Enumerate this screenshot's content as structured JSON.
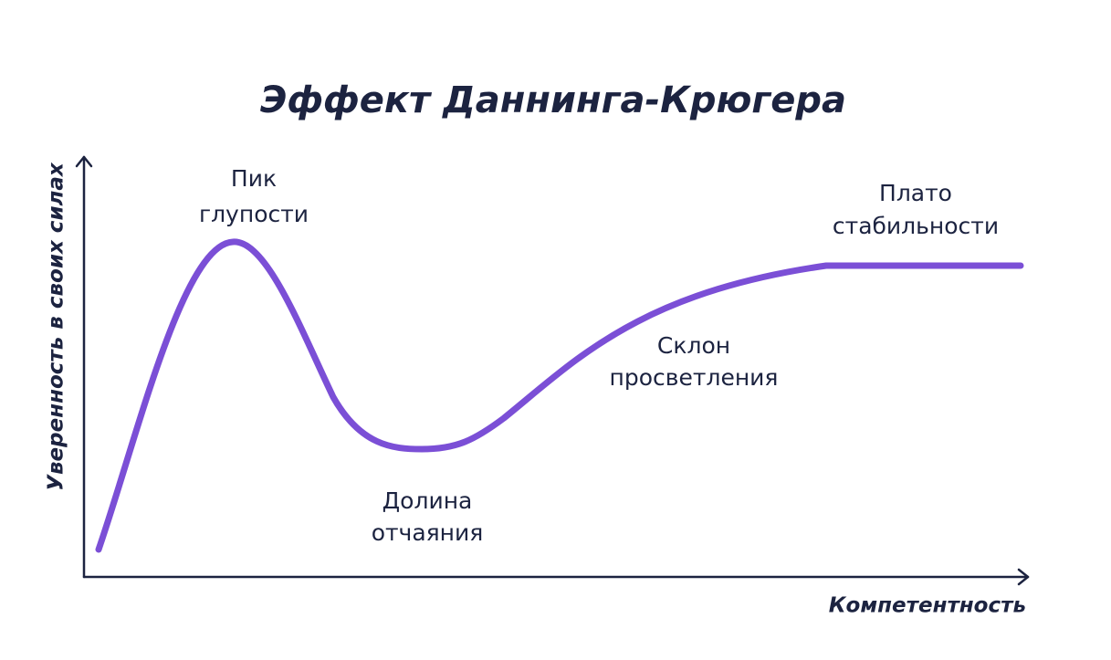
{
  "title": "Эффект Даннинга-Крюгера",
  "y_axis_label": "Уверенность в своих силах",
  "x_axis_label": "Компетентность",
  "annotations": [
    {
      "lines": [
        "Пик",
        "глупости"
      ]
    },
    {
      "lines": [
        "Долина",
        "отчаяния"
      ]
    },
    {
      "lines": [
        "Склон",
        "просветления"
      ]
    },
    {
      "lines": [
        "Плато",
        "стабильности"
      ]
    }
  ]
}
